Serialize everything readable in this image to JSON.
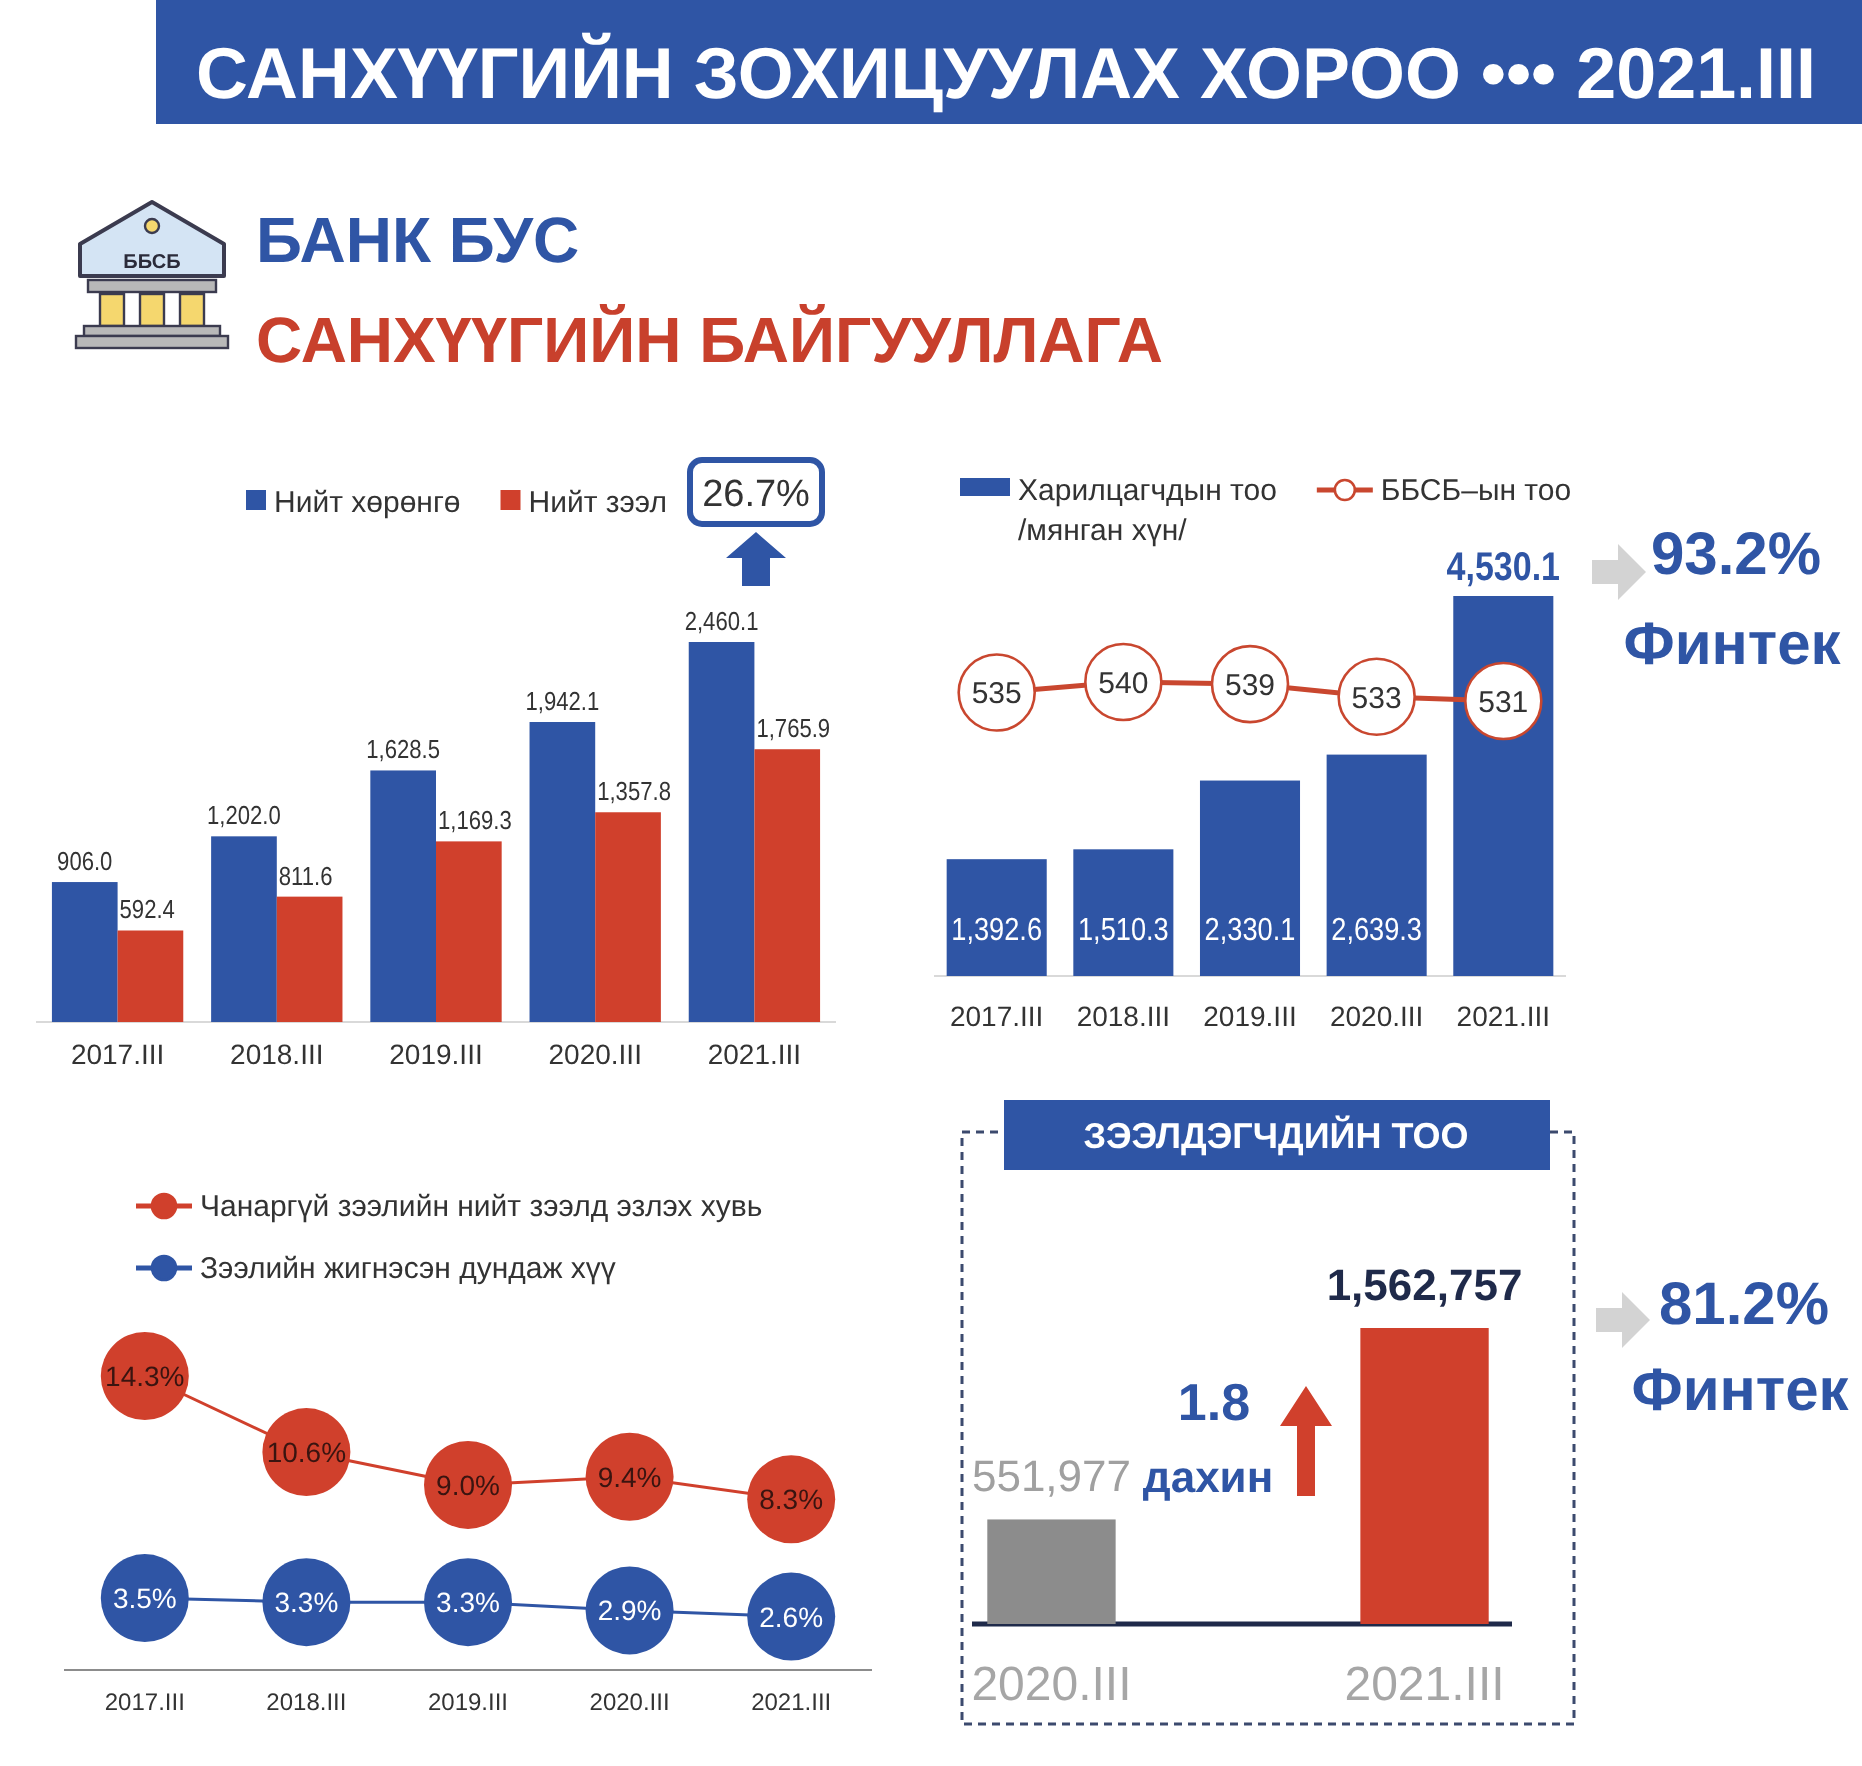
{
  "chart_data": [
    {
      "type": "bar",
      "title": "САНХҮҮГИЙН ЗОХИЦУУЛАХ ХОРОО ••• 2021.III",
      "subtitle": "БАНК БУС\nСАНХҮҮГИЙН БАЙГУУЛЛАГА",
      "categories": [
        "2017.III",
        "2018.III",
        "2019.III",
        "2020.III",
        "2021.III"
      ],
      "series": [
        {
          "name": "Нийт хөрөнгө",
          "color": "#2f55a5",
          "values": [
            906.0,
            1202.0,
            1628.5,
            1942.1,
            2460.1
          ],
          "value_labels": [
            "906.0",
            "1,202.0",
            "1,628.5",
            "1,942.1",
            "2,460.1"
          ]
        },
        {
          "name": "Нийт зээл",
          "color": "#d0402c",
          "values": [
            592.4,
            811.6,
            1169.3,
            1357.8,
            1765.9
          ],
          "value_labels": [
            "592.4",
            "811.6",
            "1,169.3",
            "1,357.8",
            "1,765.9"
          ]
        }
      ],
      "tick_labels": "x",
      "legend": "top",
      "annotations": [
        "ББСБ",
        "26.7%"
      ]
    },
    {
      "type": "bar",
      "categories": [
        "2017.III",
        "2018.III",
        "2019.III",
        "2020.III",
        "2021.III"
      ],
      "series": [
        {
          "name": "Харилцагчдын тоо /мянган хүн/",
          "color": "#2f55a5",
          "values": [
            1392.6,
            1510.3,
            2330.1,
            2639.3,
            4530.1
          ],
          "value_labels": [
            "1,392.6",
            "1,510.3",
            "2,330.1",
            "2,639.3",
            "4,530.1"
          ]
        },
        {
          "name": "ББСБ–ын тоо",
          "type": "line",
          "axis": "y2",
          "color": "#c9472f",
          "values": [
            535,
            540,
            539,
            533,
            531
          ],
          "value_labels": [
            "535",
            "540",
            "539",
            "533",
            "531"
          ]
        }
      ],
      "marker": "circle",
      "tick_labels": "x",
      "legend": "top",
      "annotations": [
        "93.2%",
        "Финтек"
      ]
    },
    {
      "type": "line",
      "categories": [
        "2017.III",
        "2018.III",
        "2019.III",
        "2020.III",
        "2021.III"
      ],
      "series": [
        {
          "name": "Чанаргүй зээлийн нийт зээлд эзлэх хувь",
          "color": "#d0402c",
          "values": [
            14.3,
            10.6,
            9.0,
            9.4,
            8.3
          ],
          "value_labels": [
            "14.3%",
            "10.6%",
            "9.0%",
            "9.4%",
            "8.3%"
          ]
        },
        {
          "name": "Зээлийн жигнэсэн дундаж хүү",
          "color": "#2f55a5",
          "values": [
            3.5,
            3.3,
            3.3,
            2.9,
            2.6
          ],
          "value_labels": [
            "3.5%",
            "3.3%",
            "3.3%",
            "2.9%",
            "2.6%"
          ]
        }
      ],
      "marker": "circle",
      "tick_labels": "x",
      "legend": "top"
    },
    {
      "type": "bar",
      "title": "ЗЭЭЛДЭГЧДИЙН ТОО",
      "categories": [
        "2020.III",
        "2021.III"
      ],
      "values": [
        551977,
        1562757
      ],
      "colors": [
        "#8c8c8c",
        "#d0402c"
      ],
      "value_labels": [
        "551,977",
        "1,562,757"
      ],
      "tick_labels": "x",
      "annotations": [
        "1.8",
        "дахин",
        "81.2%",
        "Финтек"
      ]
    }
  ]
}
